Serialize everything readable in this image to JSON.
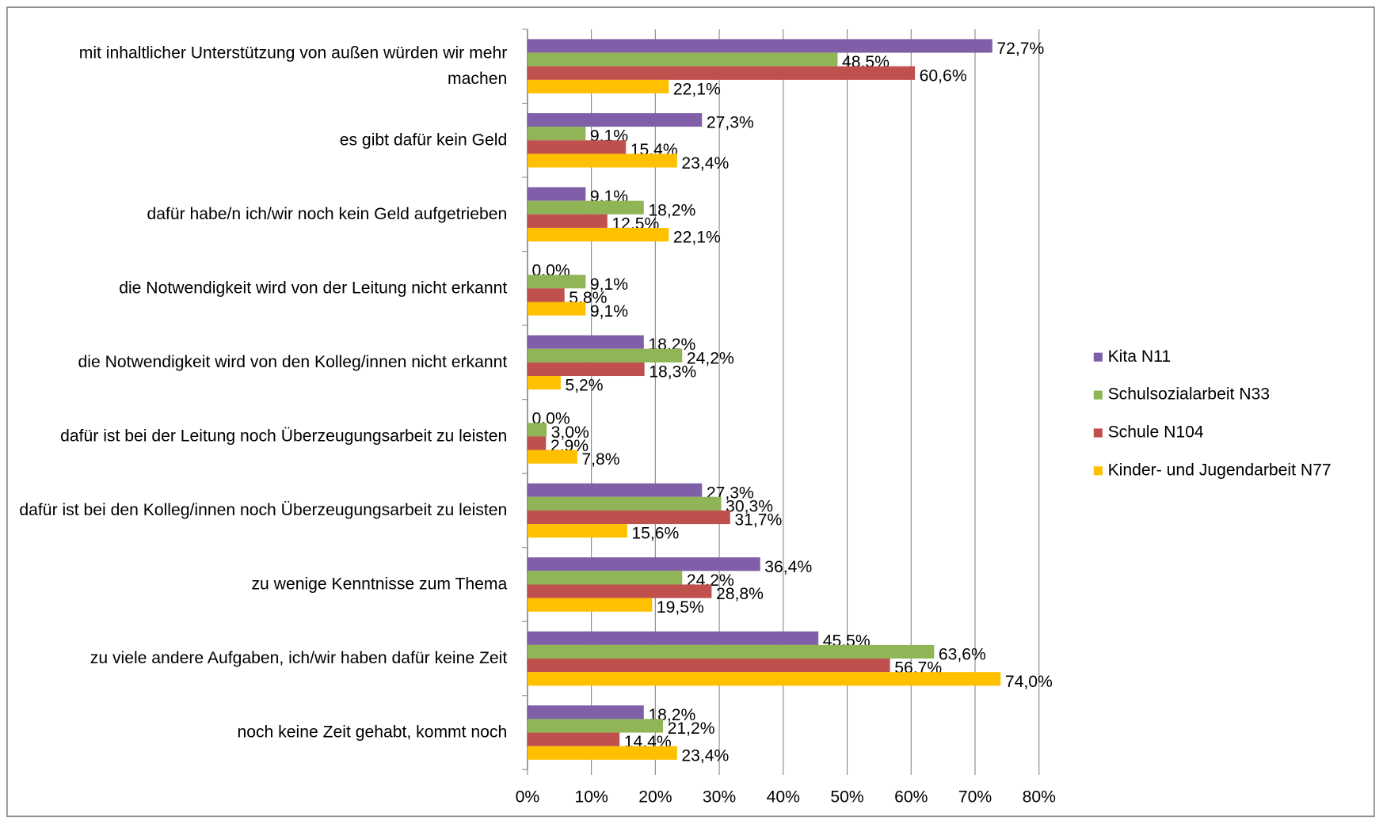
{
  "chart_data": {
    "type": "bar",
    "orientation": "horizontal",
    "categories": [
      "mit inhaltlicher Unterstützung von außen würden wir mehr machen",
      "es gibt dafür kein Geld",
      "dafür habe/n ich/wir noch kein Geld aufgetrieben",
      "die Notwendigkeit wird von der Leitung nicht erkannt",
      "die Notwendigkeit wird von den Kolleg/innen nicht erkannt",
      "dafür ist bei der Leitung noch Überzeugungsarbeit zu leisten",
      "dafür ist bei den Kolleg/innen noch Überzeugungsarbeit zu leisten",
      "zu wenige Kenntnisse zum Thema",
      "zu viele andere Aufgaben, ich/wir haben dafür keine Zeit",
      "noch keine Zeit gehabt, kommt noch"
    ],
    "series": [
      {
        "name": "Kita N11",
        "color": "#7f60a8",
        "values": [
          72.7,
          27.3,
          9.1,
          0.0,
          18.2,
          0.0,
          27.3,
          36.4,
          45.5,
          18.2
        ],
        "value_labels": [
          "72,7%",
          "27,3%",
          "9,1%",
          "0,0%",
          "18,2%",
          "0,0%",
          "27,3%",
          "36,4%",
          "45,5%",
          "18,2%"
        ]
      },
      {
        "name": "Schulsozialarbeit N33",
        "color": "#8fb556",
        "values": [
          48.5,
          9.1,
          18.2,
          9.1,
          24.2,
          3.0,
          30.3,
          24.2,
          63.6,
          21.2
        ],
        "value_labels": [
          "48,5%",
          "9,1%",
          "18,2%",
          "9,1%",
          "24,2%",
          "3,0%",
          "30,3%",
          "24,2%",
          "63,6%",
          "21,2%"
        ]
      },
      {
        "name": "Schule N104",
        "color": "#c0504d",
        "values": [
          60.6,
          15.4,
          12.5,
          5.8,
          18.3,
          2.9,
          31.7,
          28.8,
          56.7,
          14.4
        ],
        "value_labels": [
          "60,6%",
          "15,4%",
          "12,5%",
          "5,8%",
          "18,3%",
          "2,9%",
          "31,7%",
          "28,8%",
          "56,7%",
          "14,4%"
        ]
      },
      {
        "name": "Kinder- und Jugendarbeit N77",
        "color": "#ffc000",
        "values": [
          22.1,
          23.4,
          22.1,
          9.1,
          5.2,
          7.8,
          15.6,
          19.5,
          74.0,
          23.4
        ],
        "value_labels": [
          "22,1%",
          "23,4%",
          "22,1%",
          "9,1%",
          "5,2%",
          "7,8%",
          "15,6%",
          "19,5%",
          "74,0%",
          "23,4%"
        ]
      }
    ],
    "xlim": [
      0,
      80
    ],
    "xticks": [
      {
        "value": 0,
        "label": "0%"
      },
      {
        "value": 10,
        "label": "10%"
      },
      {
        "value": 20,
        "label": "20%"
      },
      {
        "value": 30,
        "label": "30%"
      },
      {
        "value": 40,
        "label": "40%"
      },
      {
        "value": 50,
        "label": "50%"
      },
      {
        "value": 60,
        "label": "60%"
      },
      {
        "value": 70,
        "label": "70%"
      },
      {
        "value": 80,
        "label": "80%"
      }
    ],
    "grid": true,
    "legend": "right"
  }
}
